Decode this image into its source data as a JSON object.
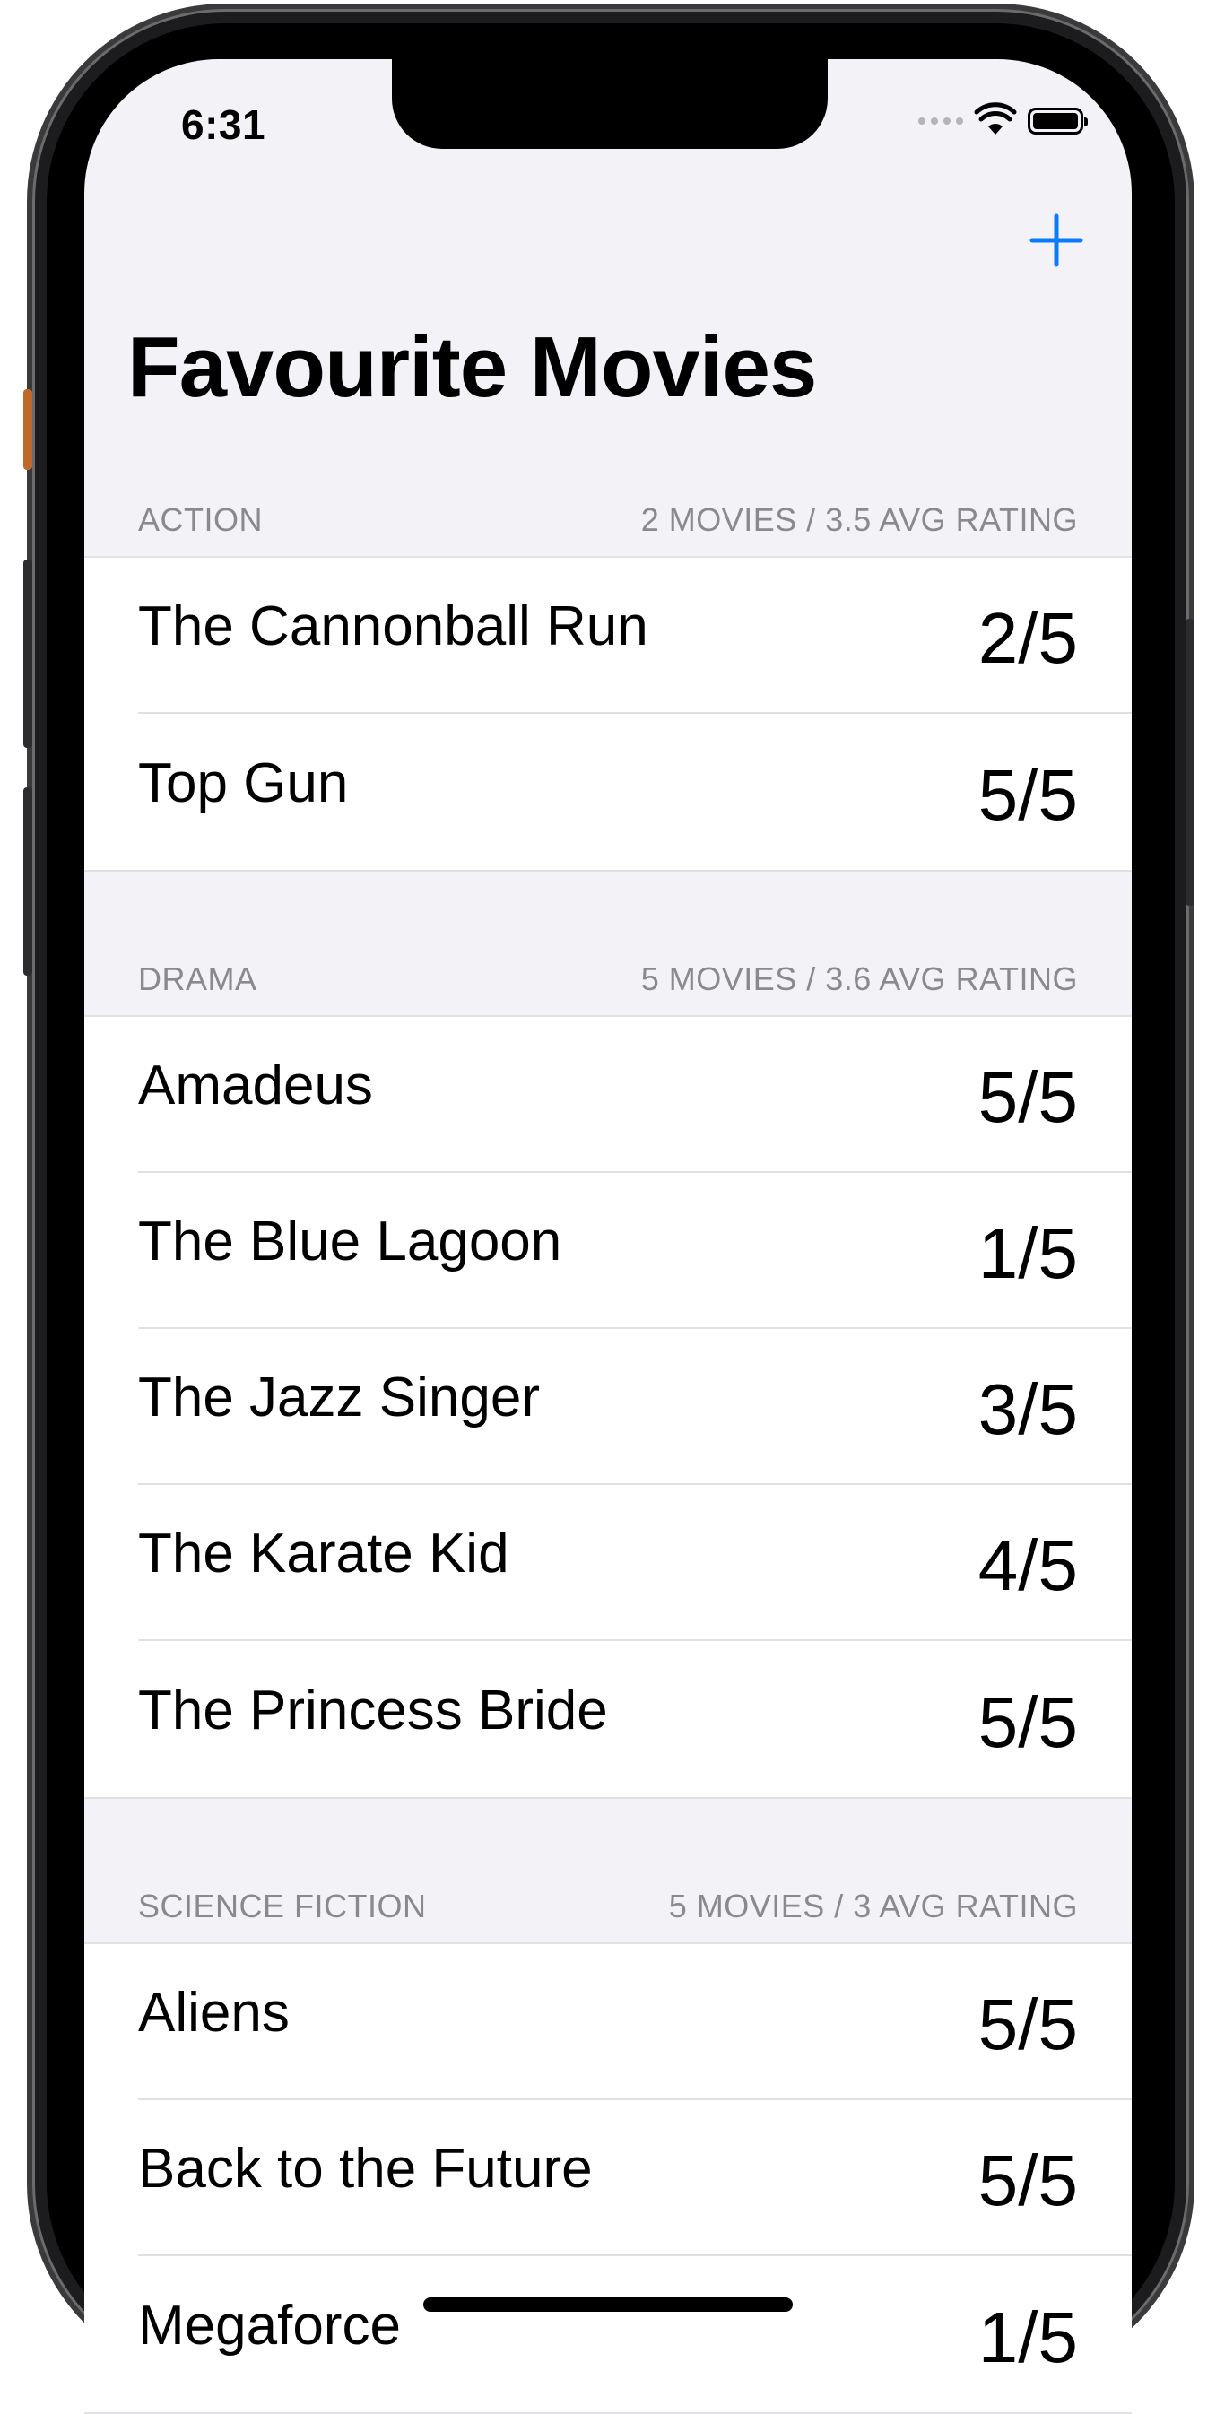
{
  "status_bar": {
    "time": "6:31",
    "icons": [
      "signal-dots-icon",
      "wifi-icon",
      "battery-icon"
    ]
  },
  "nav": {
    "add_icon": "plus-icon",
    "title": "Favourite Movies",
    "accent_color": "#0a7aff"
  },
  "sections": [
    {
      "name": "ACTION",
      "summary": "2 MOVIES / 3.5 AVG RATING",
      "movies": [
        {
          "title": "The Cannonball Run",
          "rating": "2/5"
        },
        {
          "title": "Top Gun",
          "rating": "5/5"
        }
      ]
    },
    {
      "name": "DRAMA",
      "summary": "5 MOVIES / 3.6 AVG RATING",
      "movies": [
        {
          "title": "Amadeus",
          "rating": "5/5"
        },
        {
          "title": "The Blue Lagoon",
          "rating": "1/5"
        },
        {
          "title": "The Jazz Singer",
          "rating": "3/5"
        },
        {
          "title": "The Karate Kid",
          "rating": "4/5"
        },
        {
          "title": "The Princess Bride",
          "rating": "5/5"
        }
      ]
    },
    {
      "name": "SCIENCE FICTION",
      "summary": "5 MOVIES / 3 AVG RATING",
      "movies": [
        {
          "title": "Aliens",
          "rating": "5/5"
        },
        {
          "title": "Back to the Future",
          "rating": "5/5"
        },
        {
          "title": "Megaforce",
          "rating": "1/5"
        }
      ]
    }
  ]
}
